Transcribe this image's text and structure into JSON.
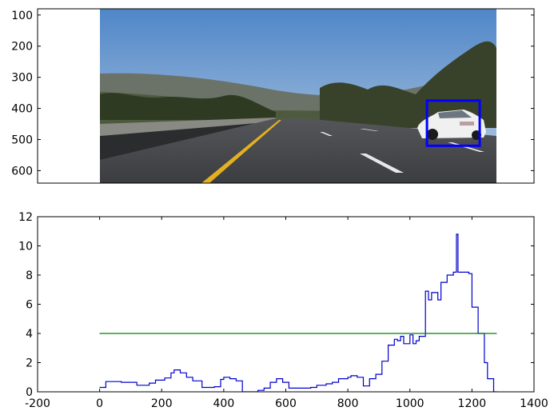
{
  "chart_data": [
    {
      "type": "image",
      "description_free": true,
      "y_ticks": [
        "100",
        "200",
        "300",
        "400",
        "500",
        "600"
      ],
      "y_tick_values": [
        100,
        200,
        300,
        400,
        500,
        600
      ],
      "ylim": [
        640,
        80
      ],
      "image_x_extent": [
        0,
        1280
      ],
      "xlim": [
        -200,
        1400
      ],
      "detection_box": {
        "x0": 1055,
        "x1": 1225,
        "y0": 375,
        "y1": 520
      },
      "box_color": "#0000ff"
    },
    {
      "type": "line",
      "xlim": [
        -200,
        1400
      ],
      "ylim": [
        0,
        12
      ],
      "x_ticks": [
        "-200",
        "0",
        "200",
        "400",
        "600",
        "800",
        "1000",
        "1200",
        "1400"
      ],
      "x_tick_values": [
        -200,
        0,
        200,
        400,
        600,
        800,
        1000,
        1200,
        1400
      ],
      "y_ticks": [
        "0",
        "2",
        "4",
        "6",
        "8",
        "10",
        "12"
      ],
      "y_tick_values": [
        0,
        2,
        4,
        6,
        8,
        10,
        12
      ],
      "series": [
        {
          "color": "#0000cc",
          "step": true,
          "points": [
            [
              0,
              0.3
            ],
            [
              20,
              0.7
            ],
            [
              70,
              0.65
            ],
            [
              120,
              0.45
            ],
            [
              160,
              0.6
            ],
            [
              180,
              0.8
            ],
            [
              210,
              0.95
            ],
            [
              230,
              1.3
            ],
            [
              240,
              1.5
            ],
            [
              260,
              1.3
            ],
            [
              280,
              1.0
            ],
            [
              300,
              0.75
            ],
            [
              330,
              0.3
            ],
            [
              370,
              0.35
            ],
            [
              390,
              0.85
            ],
            [
              400,
              1.0
            ],
            [
              420,
              0.9
            ],
            [
              440,
              0.75
            ],
            [
              460,
              0.0
            ],
            [
              500,
              0.0
            ],
            [
              510,
              0.1
            ],
            [
              530,
              0.25
            ],
            [
              550,
              0.65
            ],
            [
              570,
              0.9
            ],
            [
              590,
              0.65
            ],
            [
              610,
              0.25
            ],
            [
              640,
              0.25
            ],
            [
              680,
              0.3
            ],
            [
              700,
              0.45
            ],
            [
              730,
              0.55
            ],
            [
              750,
              0.65
            ],
            [
              770,
              0.9
            ],
            [
              800,
              1.0
            ],
            [
              810,
              1.1
            ],
            [
              830,
              1.0
            ],
            [
              850,
              0.4
            ],
            [
              870,
              0.9
            ],
            [
              890,
              1.2
            ],
            [
              910,
              2.1
            ],
            [
              930,
              3.2
            ],
            [
              950,
              3.6
            ],
            [
              960,
              3.5
            ],
            [
              970,
              3.8
            ],
            [
              980,
              3.3
            ],
            [
              1000,
              3.9
            ],
            [
              1010,
              3.3
            ],
            [
              1020,
              3.5
            ],
            [
              1030,
              3.8
            ],
            [
              1050,
              6.9
            ],
            [
              1060,
              6.3
            ],
            [
              1070,
              6.8
            ],
            [
              1090,
              6.3
            ],
            [
              1100,
              7.5
            ],
            [
              1120,
              8.0
            ],
            [
              1140,
              8.2
            ],
            [
              1150,
              10.8
            ],
            [
              1155,
              8.2
            ],
            [
              1170,
              8.2
            ],
            [
              1190,
              8.1
            ],
            [
              1200,
              5.8
            ],
            [
              1220,
              4.0
            ],
            [
              1240,
              2.0
            ],
            [
              1250,
              0.9
            ],
            [
              1270,
              0.0
            ]
          ]
        },
        {
          "color": "#008000",
          "step": false,
          "points": [
            [
              0,
              4
            ],
            [
              1280,
              4
            ]
          ]
        }
      ]
    }
  ]
}
